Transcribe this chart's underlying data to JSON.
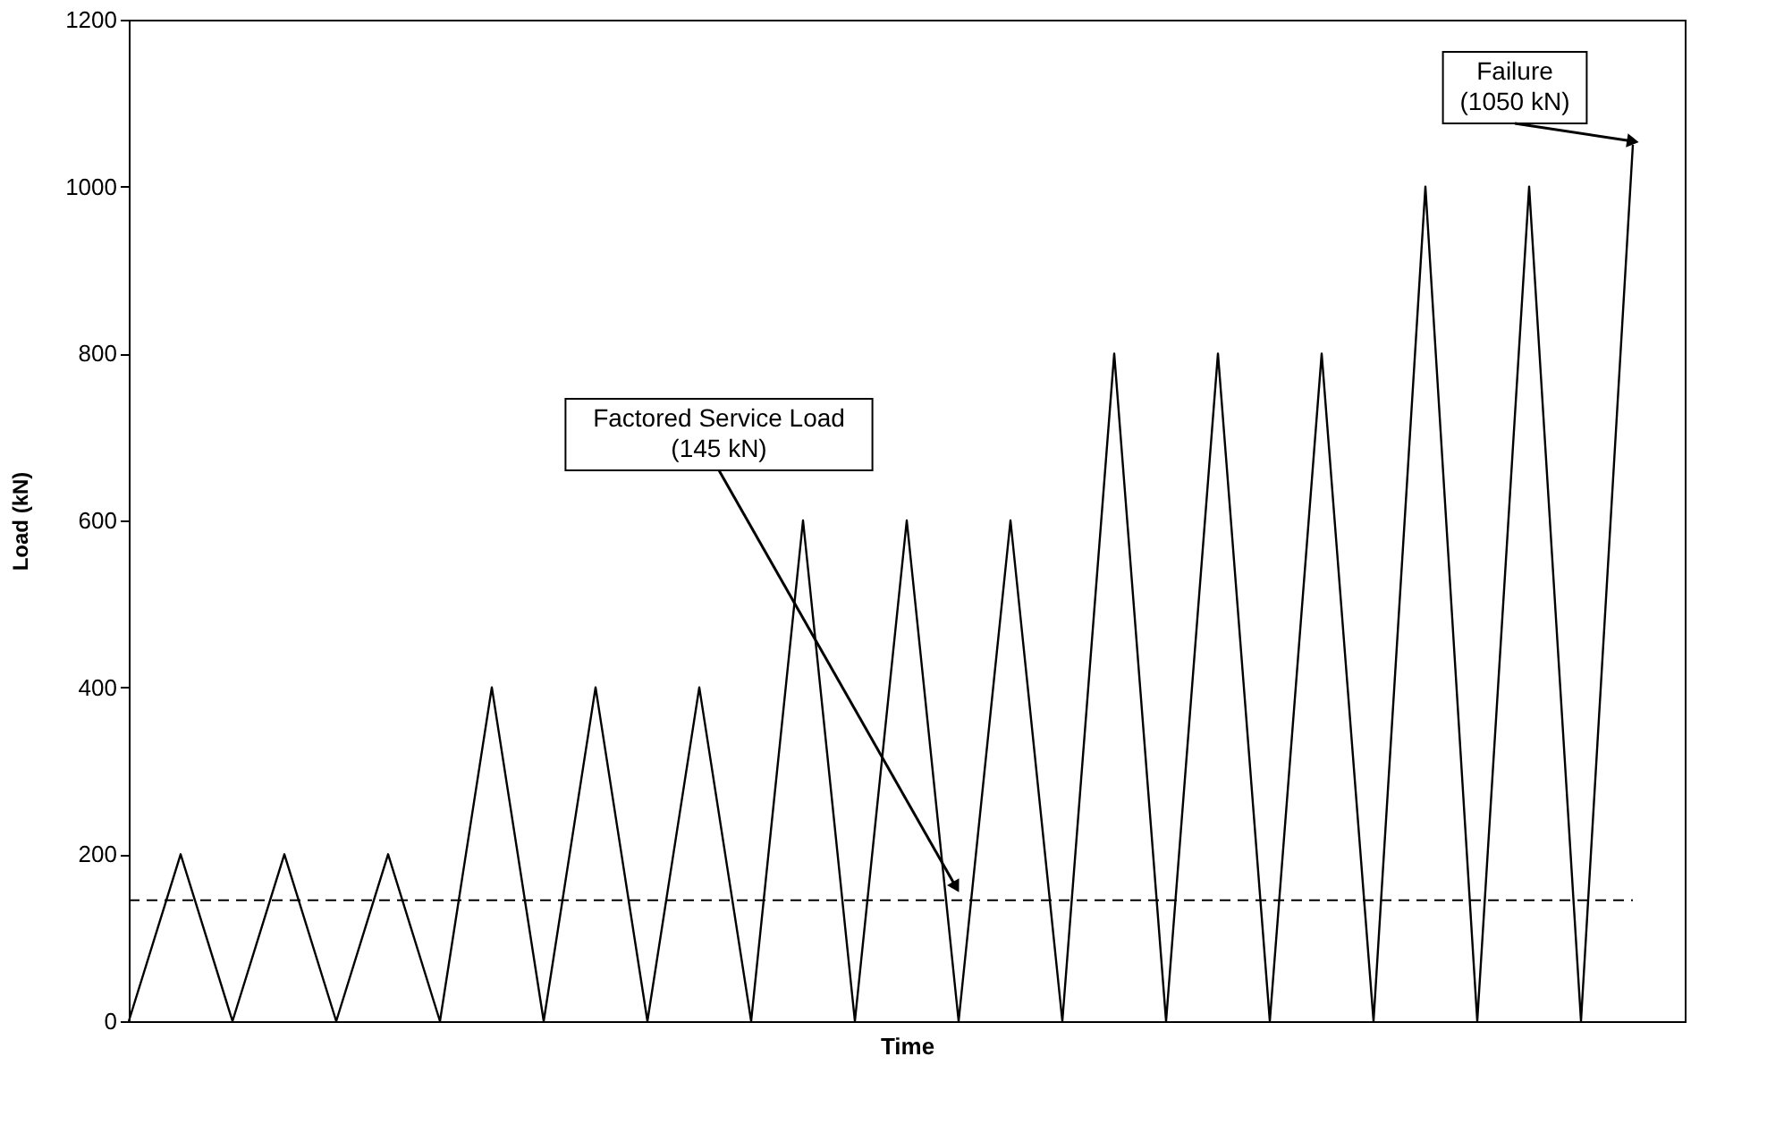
{
  "chart_data": {
    "type": "line",
    "xlabel": "Time",
    "ylabel": "Load (kN)",
    "categories": [
      null,
      null,
      null,
      null,
      null,
      null,
      null,
      null,
      null,
      null,
      null,
      null,
      null,
      null,
      null,
      null,
      null,
      null,
      null,
      null,
      null,
      null,
      null,
      null,
      null,
      null,
      null,
      null,
      null,
      null
    ],
    "series": [
      {
        "color": "#000000",
        "values": [
          0,
          200,
          0,
          200,
          0,
          200,
          0,
          400,
          0,
          400,
          0,
          400,
          0,
          600,
          0,
          600,
          0,
          600,
          0,
          800,
          0,
          800,
          0,
          800,
          0,
          1000,
          0,
          1000,
          0,
          1050
        ]
      }
    ],
    "ylim": [
      0,
      1200
    ],
    "yticks": [
      0,
      200,
      400,
      600,
      800,
      1000,
      1200
    ],
    "grid": false,
    "marker": "none",
    "line_style": "solid",
    "ref_lines": [
      {
        "axis": "y",
        "value": 145,
        "line_style": "dashed",
        "color": "#000000"
      }
    ],
    "annotations": [
      "Factored Service Load\n(145 kN)",
      "Failure\n(1050 kN)"
    ]
  }
}
